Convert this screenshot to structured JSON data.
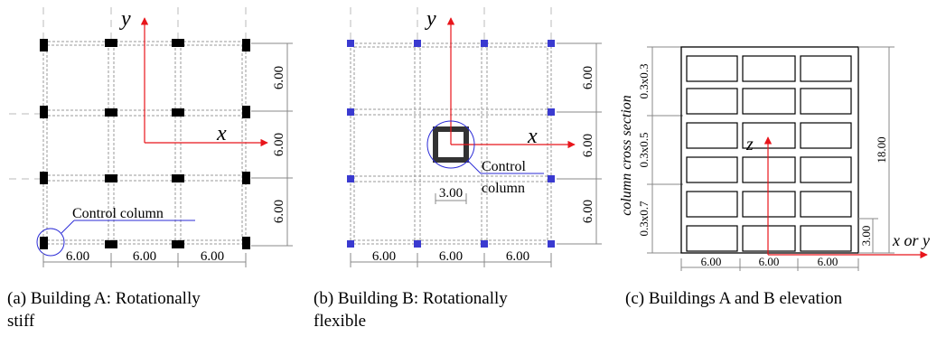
{
  "panel_a": {
    "axis_y": "y",
    "axis_x": "x",
    "spans_x": [
      "6.00",
      "6.00",
      "6.00"
    ],
    "spans_y": [
      "6.00",
      "6.00",
      "6.00"
    ],
    "control_label": "Control column"
  },
  "panel_b": {
    "axis_y": "y",
    "axis_x": "x",
    "spans_x": [
      "6.00",
      "6.00",
      "6.00"
    ],
    "spans_y": [
      "6.00",
      "6.00",
      "6.00"
    ],
    "core_dim": "3.00",
    "control_line1": "Control",
    "control_line2": "column"
  },
  "panel_c": {
    "side_title": "column cross section",
    "sections": [
      "0.3x0.3",
      "0.3x0.5",
      "0.3x0.7"
    ],
    "height": "18.00",
    "storey": "3.00",
    "spans_x": [
      "6.00",
      "6.00",
      "6.00"
    ],
    "axis_z": "z",
    "axis_h": "x or y"
  },
  "captions": {
    "a_line1": "(a)  Building A: Rotationally",
    "a_line2": "stiff",
    "b_line1": "(b)  Building B: Rotationally",
    "b_line2": "flexible",
    "c_line1": "(c)  Buildings A and B elevation"
  },
  "colors": {
    "axis": "#e8151b",
    "control": "#2b2bd6",
    "dashed": "#888888",
    "column": "#000000"
  }
}
